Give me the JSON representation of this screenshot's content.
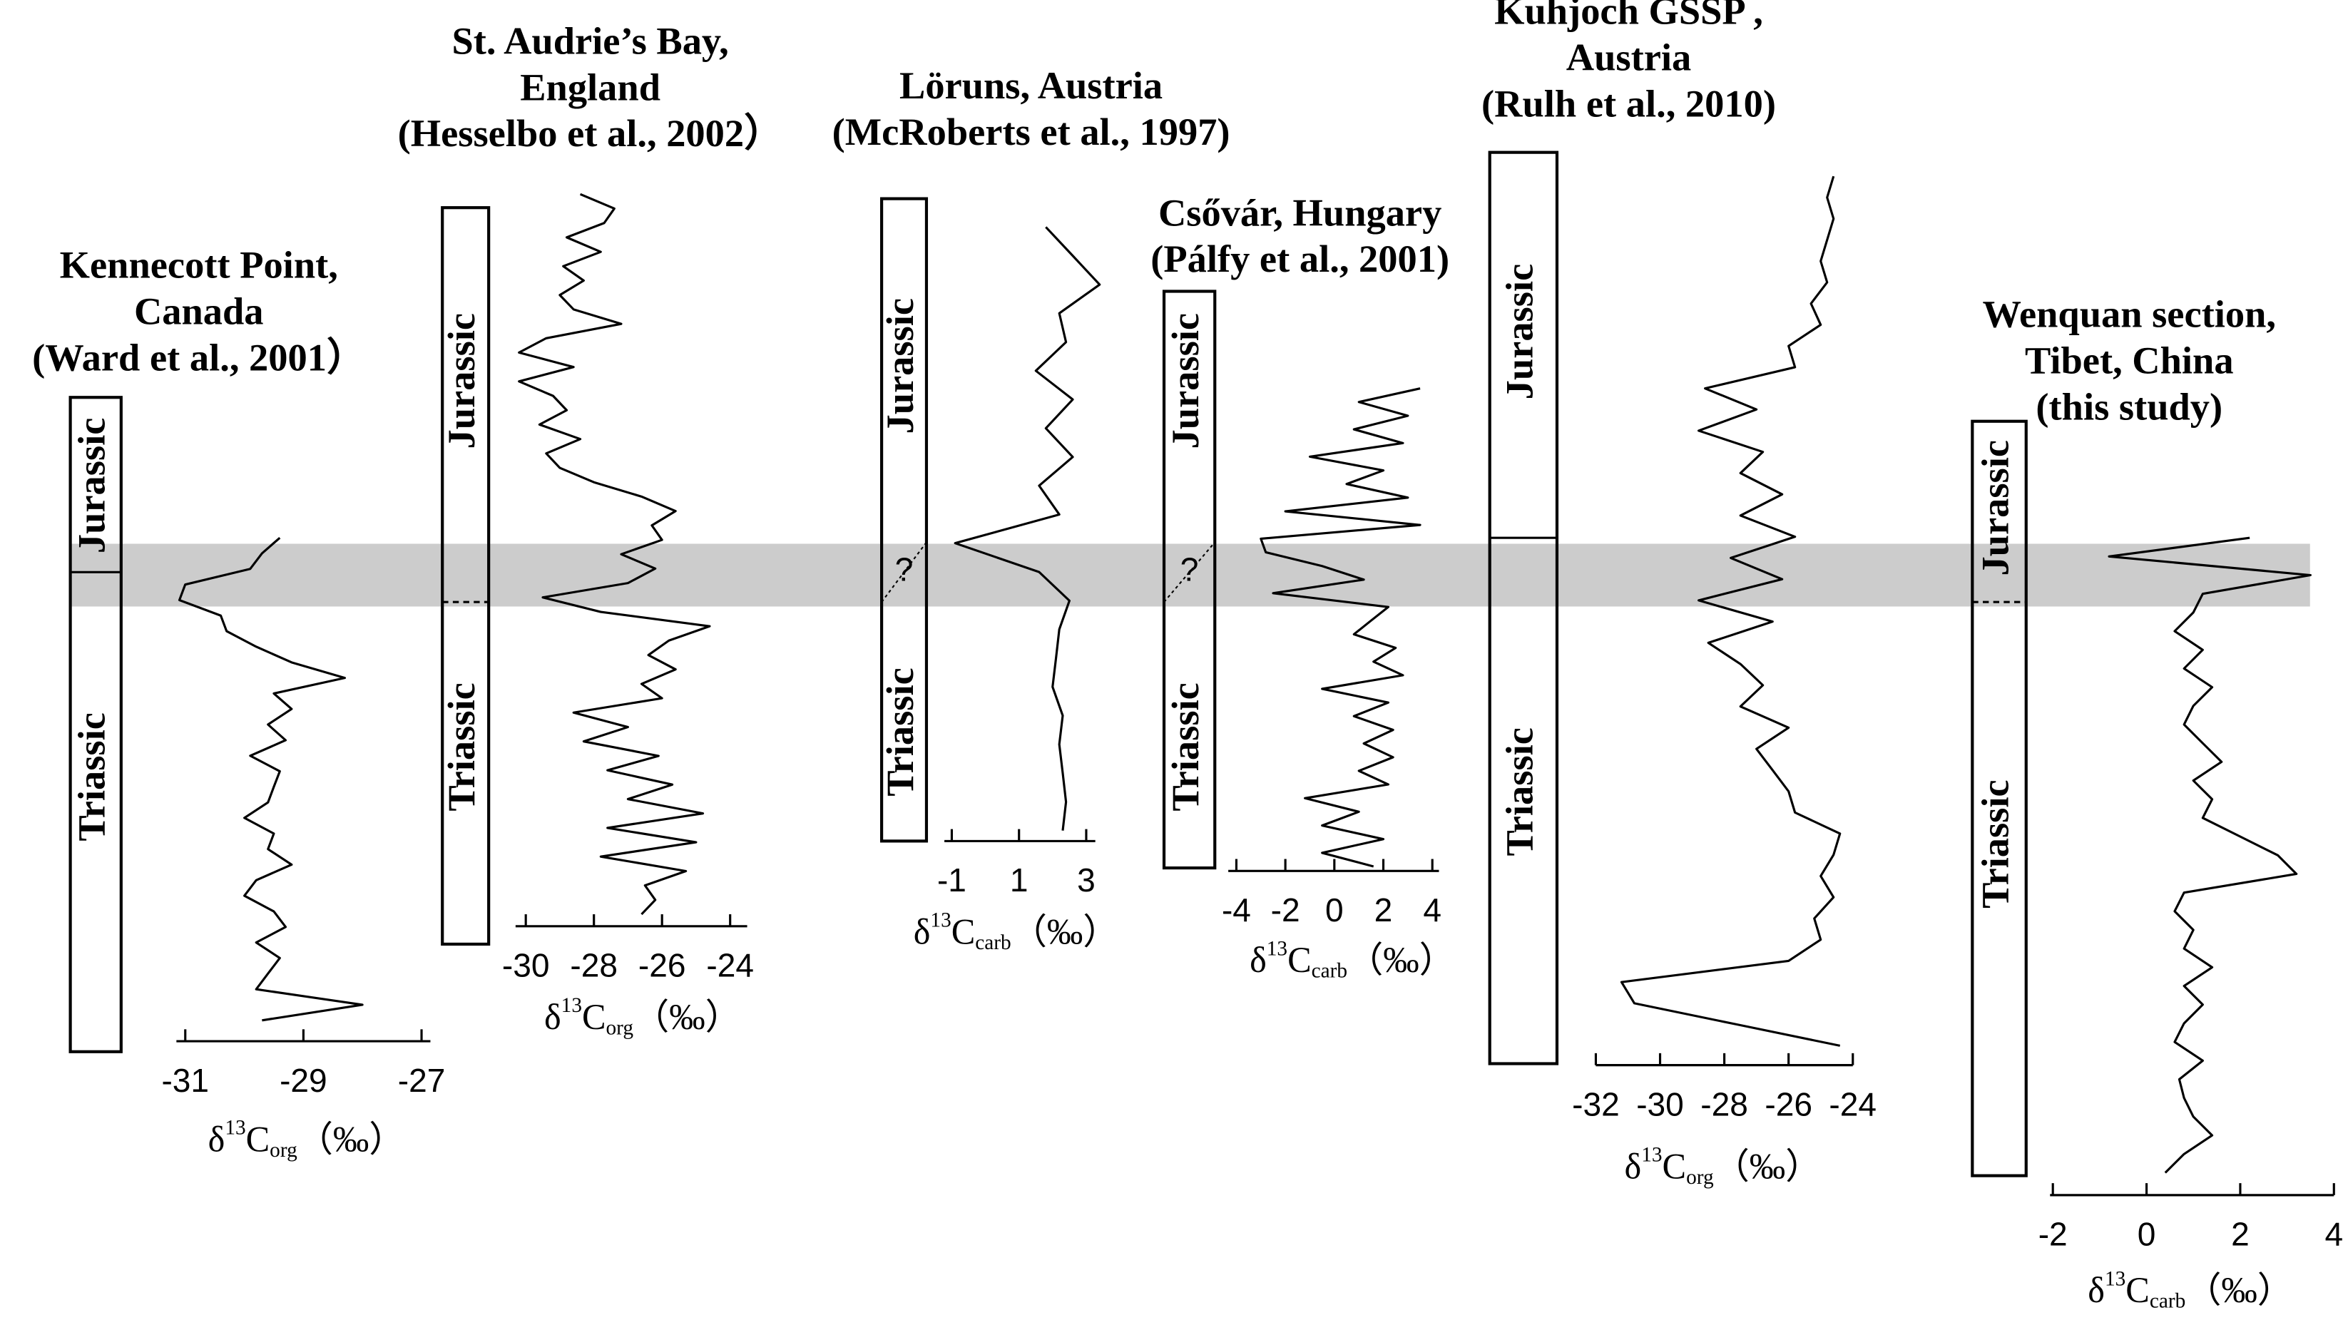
{
  "chart_data": [
    {
      "type": "line",
      "title": [
        "Kennecott Point,",
        "Canada",
        "(Ward et al., 2001）"
      ],
      "xlabel": {
        "delta": "δ",
        "sup": "13",
        "c": "C",
        "sub": "org",
        "unit": "（‰）"
      },
      "stages": [
        "Jurassic",
        "Triassic"
      ],
      "boundary": "solid",
      "color": "#000000",
      "xlim": [
        -31.15,
        -26.85
      ],
      "xticks": [
        -31,
        -29,
        -27
      ],
      "values": [
        -29.4,
        -29.7,
        -29.9,
        -31.0,
        -31.1,
        -30.4,
        -30.3,
        -29.8,
        -29.2,
        -28.3,
        -29.5,
        -29.2,
        -29.6,
        -29.3,
        -29.9,
        -29.4,
        -29.5,
        -29.6,
        -30.0,
        -29.5,
        -29.6,
        -29.2,
        -29.8,
        -30.0,
        -29.5,
        -29.3,
        -29.8,
        -29.4,
        -29.6,
        -29.8,
        -28.0,
        -29.7
      ]
    },
    {
      "type": "line",
      "title": [
        "St. Audrie’s Bay,",
        "England",
        "(Hesselbo et al., 2002）"
      ],
      "xlabel": {
        "delta": "δ",
        "sup": "13",
        "c": "C",
        "sub": "org",
        "unit": "（‰）"
      },
      "stages": [
        "Jurassic",
        "Triassic"
      ],
      "boundary": "dashed",
      "color": "#000000",
      "xlim": [
        -30.3,
        -23.5
      ],
      "xticks": [
        -30,
        -28,
        -26,
        -24
      ],
      "values": [
        -28.4,
        -27.4,
        -27.7,
        -28.8,
        -27.8,
        -28.9,
        -28.3,
        -29.0,
        -28.6,
        -27.2,
        -29.4,
        -30.2,
        -28.6,
        -30.2,
        -29.2,
        -28.8,
        -29.6,
        -28.4,
        -29.4,
        -29.0,
        -28.0,
        -26.6,
        -25.6,
        -26.3,
        -26.0,
        -27.2,
        -26.2,
        -27.0,
        -29.5,
        -27.8,
        -24.6,
        -25.8,
        -26.4,
        -25.6,
        -26.6,
        -26.0,
        -28.6,
        -27.0,
        -28.3,
        -26.1,
        -27.6,
        -25.7,
        -27.0,
        -24.8,
        -27.6,
        -25.0,
        -27.8,
        -25.3,
        -26.5,
        -26.2,
        -26.6
      ]
    },
    {
      "type": "line",
      "title": [
        "Löruns, Austria",
        "(McRoberts et al., 1997)"
      ],
      "xlabel": {
        "delta": "δ",
        "sup": "13",
        "c": "C",
        "sub": "carb",
        "unit": "（‰）"
      },
      "stages": [
        "Jurassic",
        "Triassic"
      ],
      "boundary": "dotted",
      "uncertain": "?",
      "color": "#000000",
      "xlim": [
        -1.22,
        3.27
      ],
      "xticks": [
        -1,
        1,
        3
      ],
      "values": [
        1.8,
        2.6,
        3.4,
        2.2,
        2.4,
        1.5,
        2.6,
        1.8,
        2.6,
        1.6,
        2.2,
        -0.9,
        1.6,
        2.5,
        2.2,
        2.1,
        2.0,
        2.3,
        2.2,
        2.3,
        2.4,
        2.3
      ]
    },
    {
      "type": "line",
      "title": [
        "Csővár, Hungary",
        "(Pálfy et al., 2001)"
      ],
      "xlabel": {
        "delta": "δ",
        "sup": "13",
        "c": "C",
        "sub": "carb",
        "unit": "（‰）"
      },
      "stages": [
        "Jurassic",
        "Triassic"
      ],
      "boundary": "dotted",
      "uncertain": "?",
      "color": "#000000",
      "xlim": [
        -4.33,
        4.27
      ],
      "xticks": [
        -4,
        -2,
        0,
        2,
        4
      ],
      "values": [
        3.5,
        1.0,
        3.0,
        0.8,
        2.8,
        -1.0,
        2.0,
        0.5,
        3.0,
        -2.0,
        3.5,
        -3.0,
        -2.8,
        -0.5,
        1.2,
        -2.5,
        2.2,
        1.5,
        0.8,
        2.5,
        1.6,
        2.8,
        -0.5,
        2.2,
        0.8,
        2.4,
        1.2,
        2.4,
        1.0,
        2.2,
        -1.2,
        1.0,
        -0.5,
        2.0,
        -0.5,
        1.6
      ]
    },
    {
      "type": "line",
      "title": [
        "Kuhjoch GSSP ,",
        "Austria",
        "(Rulh et al., 2010)"
      ],
      "xlabel": {
        "delta": "δ",
        "sup": "13",
        "c": "C",
        "sub": "org",
        "unit": "（‰）"
      },
      "stages": [
        "Jurassic",
        "Triassic"
      ],
      "boundary": "solid",
      "color": "#000000",
      "xlim": [
        -32,
        -24
      ],
      "xticks": [
        -32,
        -30,
        -28,
        -26,
        -24
      ],
      "values": [
        -24.6,
        -24.8,
        -24.6,
        -24.8,
        -25.0,
        -24.8,
        -25.3,
        -25.0,
        -26.0,
        -25.8,
        -28.6,
        -27.0,
        -28.8,
        -26.8,
        -27.5,
        -26.2,
        -27.5,
        -25.8,
        -27.8,
        -26.2,
        -28.8,
        -26.5,
        -28.5,
        -27.5,
        -26.8,
        -27.5,
        -26.0,
        -27.0,
        -26.5,
        -26.0,
        -25.8,
        -24.4,
        -24.6,
        -25.0,
        -24.6,
        -25.2,
        -25.0,
        -26.0,
        -31.2,
        -30.8,
        -27.6,
        -24.4
      ]
    },
    {
      "type": "line",
      "title": [
        "Wenquan section,",
        "Tibet, China",
        "(this study)"
      ],
      "xlabel": {
        "delta": "δ",
        "sup": "13",
        "c": "C",
        "sub": "carb",
        "unit": "（‰）"
      },
      "stages": [
        "Jurassic",
        "Triassic"
      ],
      "boundary": "dashed",
      "color": "#000000",
      "xlim": [
        -2.06,
        4
      ],
      "xticks": [
        -2,
        0,
        2,
        4
      ],
      "values": [
        2.2,
        -0.8,
        3.5,
        1.2,
        1.0,
        0.6,
        1.2,
        0.8,
        1.4,
        1.0,
        0.8,
        1.2,
        1.6,
        1.0,
        1.4,
        1.2,
        2.0,
        2.8,
        3.2,
        0.8,
        0.6,
        1.0,
        0.8,
        1.4,
        0.8,
        1.2,
        0.8,
        0.6,
        1.2,
        0.7,
        0.8,
        1.0,
        1.4,
        0.8,
        0.4
      ]
    }
  ]
}
